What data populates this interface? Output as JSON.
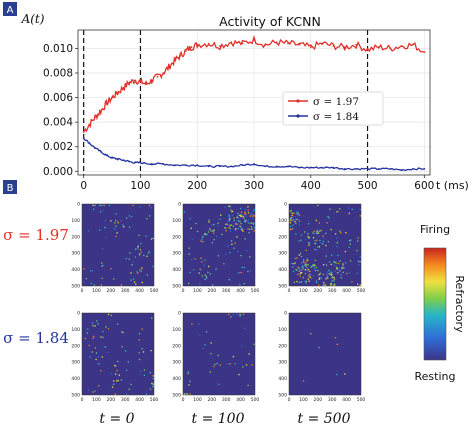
{
  "panels": {
    "a_label": "A",
    "b_label": "B"
  },
  "colors": {
    "badge": "#2a3f8f",
    "red": "#e0312b",
    "blue": "#2533a0",
    "heat_bg": "#3b3487"
  },
  "chart_data": [
    {
      "type": "line",
      "title": "Activity of KCNN",
      "ylabel": "A(t)",
      "xlabel": "t (ms)",
      "xlim": [
        -10,
        610
      ],
      "ylim": [
        -0.0003,
        0.0115
      ],
      "xticks": [
        0,
        100,
        200,
        300,
        400,
        500,
        600
      ],
      "yticks": [
        0.0,
        0.002,
        0.004,
        0.006,
        0.008,
        0.01
      ],
      "ytick_labels": [
        "0.000",
        "0.002",
        "0.004",
        "0.006",
        "0.008",
        "0.010"
      ],
      "grid": true,
      "vlines_dashed": [
        0,
        100,
        500
      ],
      "legend": {
        "placement": "center-right"
      },
      "series": [
        {
          "name": "σ = 1.97",
          "color": "#e0312b",
          "x": [
            0,
            10,
            20,
            30,
            40,
            50,
            60,
            70,
            80,
            90,
            100,
            110,
            120,
            130,
            140,
            150,
            160,
            170,
            180,
            190,
            200,
            220,
            240,
            260,
            280,
            300,
            320,
            340,
            360,
            380,
            400,
            420,
            440,
            460,
            480,
            500,
            520,
            540,
            560,
            580,
            600
          ],
          "y": [
            0.0032,
            0.0038,
            0.0044,
            0.0049,
            0.0055,
            0.006,
            0.0064,
            0.0068,
            0.0072,
            0.0074,
            0.0073,
            0.0071,
            0.0074,
            0.0077,
            0.008,
            0.0085,
            0.009,
            0.0094,
            0.0098,
            0.0101,
            0.0103,
            0.0104,
            0.0102,
            0.0105,
            0.0104,
            0.0107,
            0.0103,
            0.0105,
            0.0104,
            0.0103,
            0.0101,
            0.0104,
            0.0102,
            0.0101,
            0.0103,
            0.0099,
            0.0101,
            0.01,
            0.0102,
            0.0103,
            0.0097
          ]
        },
        {
          "name": "σ = 1.84",
          "color": "#2533a0",
          "x": [
            0,
            10,
            20,
            30,
            40,
            50,
            60,
            70,
            80,
            90,
            100,
            120,
            140,
            160,
            180,
            200,
            220,
            240,
            260,
            280,
            300,
            320,
            340,
            360,
            380,
            400,
            420,
            440,
            460,
            480,
            500,
            520,
            540,
            560,
            580,
            600
          ],
          "y": [
            0.0027,
            0.0023,
            0.0019,
            0.0016,
            0.0013,
            0.0011,
            0.001,
            0.0009,
            0.0008,
            0.0007,
            0.0007,
            0.0006,
            0.0006,
            0.0005,
            0.0005,
            0.0005,
            0.0004,
            0.0004,
            0.0004,
            0.0005,
            0.0006,
            0.0004,
            0.0004,
            0.0004,
            0.0003,
            0.0003,
            0.0003,
            0.0003,
            0.0002,
            0.0002,
            0.0002,
            0.0002,
            0.0002,
            0.0001,
            0.0002,
            0.0002
          ]
        }
      ]
    },
    {
      "type": "heatmap",
      "rows": [
        {
          "label": "σ = 1.97",
          "color": "#e0312b"
        },
        {
          "label": "σ = 1.84",
          "color": "#2533a0"
        }
      ],
      "columns": [
        "t = 0",
        "t = 100",
        "t = 500"
      ],
      "axis_ticks": [
        "0",
        "100",
        "200",
        "300",
        "400",
        "500"
      ],
      "density": [
        [
          0.05,
          0.1,
          0.16
        ],
        [
          0.045,
          0.025,
          0.004
        ]
      ],
      "colorbar": {
        "top": "Firing",
        "middle": "Refractory",
        "bottom": "Resting"
      }
    }
  ]
}
